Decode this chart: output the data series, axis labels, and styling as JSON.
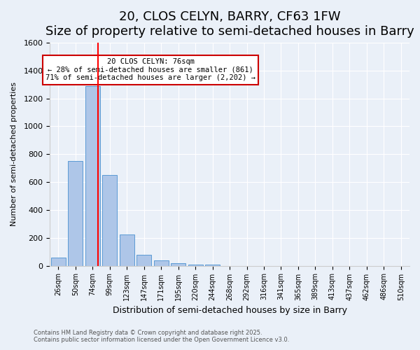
{
  "title": "20, CLOS CELYN, BARRY, CF63 1FW",
  "subtitle": "Size of property relative to semi-detached houses in Barry",
  "xlabel": "Distribution of semi-detached houses by size in Barry",
  "ylabel": "Number of semi-detached properties",
  "categories": [
    "26sqm",
    "50sqm",
    "74sqm",
    "99sqm",
    "123sqm",
    "147sqm",
    "171sqm",
    "195sqm",
    "220sqm",
    "244sqm",
    "268sqm",
    "292sqm",
    "316sqm",
    "341sqm",
    "365sqm",
    "389sqm",
    "413sqm",
    "437sqm",
    "462sqm",
    "486sqm",
    "510sqm"
  ],
  "values": [
    60,
    750,
    1290,
    650,
    225,
    80,
    40,
    20,
    10,
    8,
    0,
    0,
    0,
    0,
    0,
    0,
    0,
    0,
    0,
    0,
    0
  ],
  "bar_color": "#aec6e8",
  "bar_edge_color": "#5b9bd5",
  "red_line_x": 2,
  "red_line_label": "20 CLOS CELYN: 76sqm",
  "annotation_line1": "20 CLOS CELYN: 76sqm",
  "annotation_line2": "← 28% of semi-detached houses are smaller (861)",
  "annotation_line3": "71% of semi-detached houses are larger (2,202) →",
  "annotation_box_color": "#ffffff",
  "annotation_box_edge": "#cc0000",
  "ylim": [
    0,
    1600
  ],
  "yticks": [
    0,
    200,
    400,
    600,
    800,
    1000,
    1200,
    1400,
    1600
  ],
  "footnote1": "Contains HM Land Registry data © Crown copyright and database right 2025.",
  "footnote2": "Contains public sector information licensed under the Open Government Licence v3.0.",
  "background_color": "#eaf0f8",
  "plot_background": "#eaf0f8",
  "title_fontsize": 13,
  "subtitle_fontsize": 11,
  "bar_width": 0.85
}
